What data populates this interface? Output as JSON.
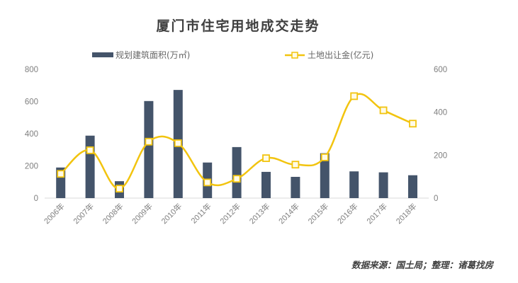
{
  "title": "厦门市住宅用地成交走势",
  "source": "数据来源：国土局；整理：诸葛找房",
  "colors": {
    "bar": "#44546a",
    "line": "#f2c40f",
    "marker_fill": "#fffbe6",
    "axis": "#d9d9d9",
    "text": "#7f7f7f"
  },
  "chart_data": {
    "type": "bar+line",
    "title": "厦门市住宅用地成交走势",
    "categories": [
      "2006年",
      "2007年",
      "2008年",
      "2009年",
      "2010年",
      "2011年",
      "2012年",
      "2013年",
      "2014年",
      "2015年",
      "2016年",
      "2017年",
      "2018年"
    ],
    "series": [
      {
        "name": "规划建筑面积(万㎡)",
        "type": "bar",
        "axis": "left",
        "values": [
          190,
          388,
          105,
          603,
          672,
          221,
          317,
          163,
          132,
          279,
          166,
          160,
          142
        ]
      },
      {
        "name": "土地出让金(亿元)",
        "type": "line",
        "smooth": true,
        "marker": "square",
        "axis": "right",
        "values": [
          113,
          223,
          44,
          263,
          256,
          73,
          90,
          186,
          156,
          190,
          475,
          409,
          347
        ]
      }
    ],
    "left_axis": {
      "ylim": [
        0,
        800
      ],
      "ticks": [
        "0",
        "200",
        "400",
        "600",
        "800"
      ]
    },
    "right_axis": {
      "ylim": [
        0,
        600
      ],
      "ticks": [
        "0",
        "200",
        "400",
        "600"
      ]
    },
    "xlabel": "",
    "ylabel": "",
    "grid": false,
    "legend_position": "top"
  },
  "legend": {
    "bar_label": "规划建筑面积(万㎡)",
    "line_label": "土地出让金(亿元)"
  }
}
